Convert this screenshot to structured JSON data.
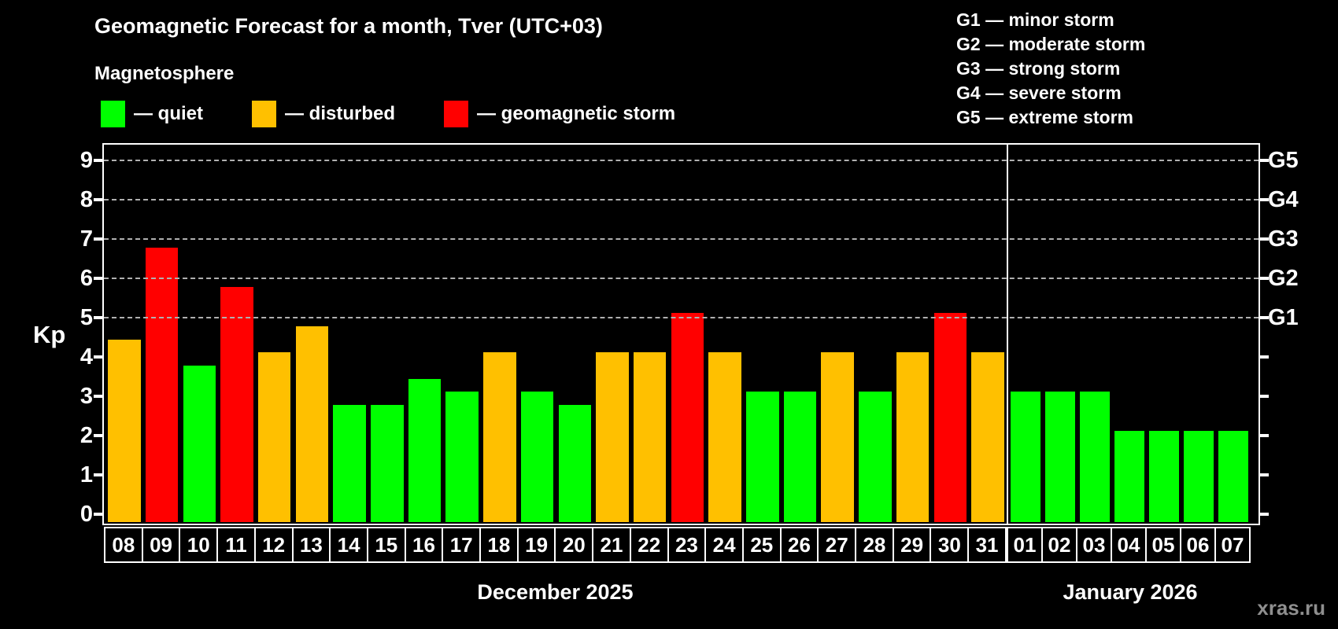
{
  "title": "Geomagnetic Forecast for a month, Tver (UTC+03)",
  "subtitle": "Magnetosphere",
  "legend": {
    "quiet": {
      "label": "— quiet",
      "color": "#00FF00"
    },
    "disturbed": {
      "label": "— disturbed",
      "color": "#FFC000"
    },
    "storm": {
      "label": "— geomagnetic storm",
      "color": "#FF0000"
    }
  },
  "storm_scale": {
    "g1": "G1 — minor storm",
    "g2": "G2 — moderate storm",
    "g3": "G3 — strong storm",
    "g4": "G4 — severe storm",
    "g5": "G5 — extreme storm"
  },
  "axis": {
    "y_label": "Kp",
    "y_ticks": [
      0,
      1,
      2,
      3,
      4,
      5,
      6,
      7,
      8,
      9
    ],
    "grid_levels": [
      5,
      6,
      7,
      8,
      9
    ],
    "right_labels": [
      {
        "level": 5,
        "label": "G1"
      },
      {
        "level": 6,
        "label": "G2"
      },
      {
        "level": 7,
        "label": "G3"
      },
      {
        "level": 8,
        "label": "G4"
      },
      {
        "level": 9,
        "label": "G5"
      }
    ]
  },
  "watermark": "xras.ru",
  "chart_data": {
    "type": "bar",
    "title": "Geomagnetic Forecast for a month, Tver (UTC+03)",
    "ylabel": "Kp",
    "ylim": [
      0,
      9.4
    ],
    "grid": "horizontal dashed lines at Kp 5-9 (storm levels G1-G5)",
    "legend_position": "top-left",
    "colors": {
      "quiet": "#00FF00",
      "disturbed": "#FFC000",
      "storm": "#FF0000"
    },
    "background": "#000000",
    "grid_color": "#B0B0B0",
    "months": [
      {
        "label": "December 2025",
        "categories": [
          "08",
          "09",
          "10",
          "11",
          "12",
          "13",
          "14",
          "15",
          "16",
          "17",
          "18",
          "19",
          "20",
          "21",
          "22",
          "23",
          "24",
          "25",
          "26",
          "27",
          "28",
          "29",
          "30",
          "31"
        ],
        "values": [
          4.33,
          6.67,
          3.67,
          5.67,
          4.0,
          4.67,
          2.67,
          2.67,
          3.33,
          3.0,
          4.0,
          3.0,
          2.67,
          4.0,
          4.0,
          5.0,
          4.0,
          3.0,
          3.0,
          4.0,
          3.0,
          4.0,
          5.0,
          4.0
        ],
        "status": [
          "disturbed",
          "storm",
          "quiet",
          "storm",
          "disturbed",
          "disturbed",
          "quiet",
          "quiet",
          "quiet",
          "quiet",
          "disturbed",
          "quiet",
          "quiet",
          "disturbed",
          "disturbed",
          "storm",
          "disturbed",
          "quiet",
          "quiet",
          "disturbed",
          "quiet",
          "disturbed",
          "storm",
          "disturbed"
        ]
      },
      {
        "label": "January 2026",
        "categories": [
          "01",
          "02",
          "03",
          "04",
          "05",
          "06",
          "07"
        ],
        "values": [
          3.0,
          3.0,
          3.0,
          2.0,
          2.0,
          2.0,
          2.0
        ],
        "status": [
          "quiet",
          "quiet",
          "quiet",
          "quiet",
          "quiet",
          "quiet",
          "quiet"
        ]
      }
    ]
  }
}
